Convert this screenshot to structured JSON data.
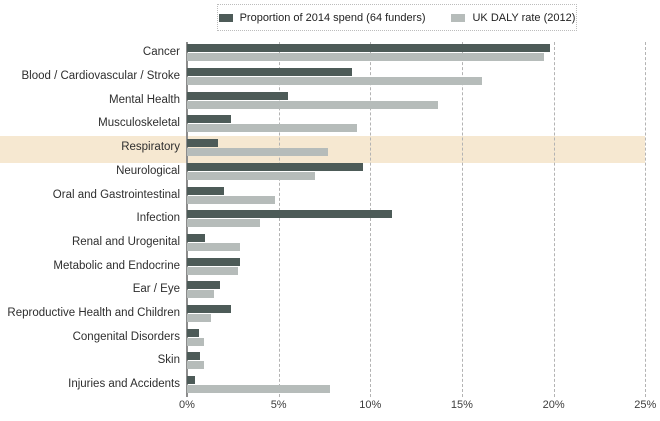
{
  "legend": {
    "items": [
      {
        "label": "Proportion of 2014 spend (64 funders)",
        "color": "#4d5b58"
      },
      {
        "label": "UK DALY rate (2012)",
        "color": "#b6bcba"
      }
    ]
  },
  "chart_data": {
    "type": "bar",
    "orientation": "horizontal",
    "title": "",
    "categories": [
      "Cancer",
      "Blood / Cardiovascular / Stroke",
      "Mental Health",
      "Musculoskeletal",
      "Respiratory",
      "Neurological",
      "Oral and Gastrointestinal",
      "Infection",
      "Renal and Urogenital",
      "Metabolic and Endocrine",
      "Ear / Eye",
      "Reproductive Health and Children",
      "Congenital Disorders",
      "Skin",
      "Injuries and Accidents"
    ],
    "series": [
      {
        "name": "Proportion of 2014 spend (64 funders)",
        "color": "#4d5b58",
        "values": [
          19.8,
          9.0,
          5.5,
          2.4,
          1.7,
          9.6,
          2.0,
          11.2,
          1.0,
          2.9,
          1.8,
          2.4,
          0.65,
          0.7,
          0.45
        ]
      },
      {
        "name": "UK DALY rate (2012)",
        "color": "#b6bcba",
        "values": [
          19.5,
          16.1,
          13.7,
          9.3,
          7.7,
          7.0,
          4.8,
          4.0,
          2.9,
          2.8,
          1.5,
          1.3,
          0.95,
          0.95,
          7.8
        ]
      }
    ],
    "xlabel": "",
    "ylabel": "",
    "xlim": [
      0,
      25
    ],
    "x_ticks": [
      "0%",
      "5%",
      "10%",
      "15%",
      "20%",
      "25%"
    ],
    "x_tick_values": [
      0,
      5,
      10,
      15,
      20,
      25
    ],
    "grid": "vertical-dashed",
    "legend_position": "top-center",
    "highlighted_category": "Respiratory",
    "highlight_color": "#f6e8d1"
  }
}
